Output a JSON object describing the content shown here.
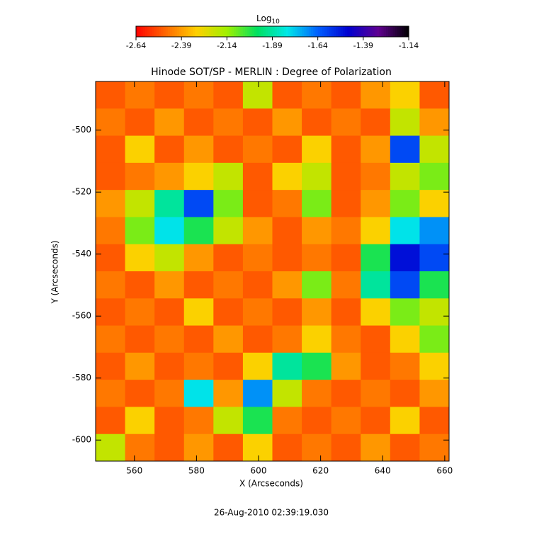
{
  "chart_data": {
    "type": "heatmap",
    "title": "Hinode SOT/SP - MERLIN : Degree of Polarization",
    "x_label": "X (Arcseconds)",
    "y_label": "Y (Arcseconds)",
    "footer": "26-Aug-2010 02:39:19.030",
    "colorbar_label": "Log",
    "colorbar_label_sub": "10",
    "colorbar_lim": [
      -2.64,
      -1.14
    ],
    "colorbar_ticks": [
      -2.64,
      -2.39,
      -2.14,
      -1.89,
      -1.64,
      -1.39,
      -1.14
    ],
    "colormap": [
      "#ff0000",
      "#ff6a00",
      "#ffd000",
      "#a0f000",
      "#00e060",
      "#00e8e8",
      "#0060ff",
      "#0000d0",
      "#600090",
      "#000000"
    ],
    "xlim": [
      547.5,
      661.4
    ],
    "ylim": [
      -606.8,
      -484.3
    ],
    "xticks": [
      560,
      580,
      600,
      620,
      640,
      660
    ],
    "yticks": [
      -500,
      -520,
      -540,
      -560,
      -580,
      -600
    ],
    "values": [
      [
        -2.5,
        -2.45,
        -2.5,
        -2.45,
        -2.5,
        -2.2,
        -2.5,
        -2.45,
        -2.5,
        -2.4,
        -2.3,
        -2.5
      ],
      [
        -2.45,
        -2.5,
        -2.4,
        -2.5,
        -2.45,
        -2.5,
        -2.4,
        -2.5,
        -2.45,
        -2.5,
        -2.2,
        -2.4
      ],
      [
        -2.5,
        -2.3,
        -2.5,
        -2.4,
        -2.5,
        -2.45,
        -2.5,
        -2.3,
        -2.5,
        -2.4,
        -1.6,
        -2.2
      ],
      [
        -2.5,
        -2.45,
        -2.4,
        -2.3,
        -2.2,
        -2.5,
        -2.3,
        -2.2,
        -2.5,
        -2.45,
        -2.2,
        -2.1
      ],
      [
        -2.4,
        -2.2,
        -1.9,
        -1.6,
        -2.1,
        -2.5,
        -2.45,
        -2.1,
        -2.5,
        -2.4,
        -2.1,
        -2.3
      ],
      [
        -2.45,
        -2.1,
        -1.8,
        -2.0,
        -2.2,
        -2.4,
        -2.5,
        -2.4,
        -2.45,
        -2.3,
        -1.8,
        -1.7
      ],
      [
        -2.5,
        -2.3,
        -2.2,
        -2.4,
        -2.5,
        -2.45,
        -2.5,
        -2.45,
        -2.5,
        -2.0,
        -1.5,
        -1.6
      ],
      [
        -2.45,
        -2.5,
        -2.4,
        -2.5,
        -2.45,
        -2.5,
        -2.4,
        -2.1,
        -2.45,
        -1.9,
        -1.6,
        -2.0
      ],
      [
        -2.5,
        -2.45,
        -2.5,
        -2.3,
        -2.5,
        -2.45,
        -2.5,
        -2.4,
        -2.5,
        -2.3,
        -2.1,
        -2.2
      ],
      [
        -2.45,
        -2.5,
        -2.45,
        -2.5,
        -2.4,
        -2.5,
        -2.45,
        -2.3,
        -2.45,
        -2.5,
        -2.3,
        -2.1
      ],
      [
        -2.5,
        -2.4,
        -2.5,
        -2.45,
        -2.5,
        -2.3,
        -1.9,
        -2.0,
        -2.4,
        -2.5,
        -2.45,
        -2.3
      ],
      [
        -2.45,
        -2.5,
        -2.45,
        -1.8,
        -2.4,
        -1.7,
        -2.2,
        -2.45,
        -2.5,
        -2.45,
        -2.5,
        -2.4
      ],
      [
        -2.5,
        -2.3,
        -2.5,
        -2.45,
        -2.2,
        -2.0,
        -2.45,
        -2.5,
        -2.45,
        -2.5,
        -2.3,
        -2.5
      ],
      [
        -2.2,
        -2.45,
        -2.5,
        -2.4,
        -2.5,
        -2.3,
        -2.5,
        -2.45,
        -2.5,
        -2.4,
        -2.5,
        -2.45
      ]
    ]
  }
}
